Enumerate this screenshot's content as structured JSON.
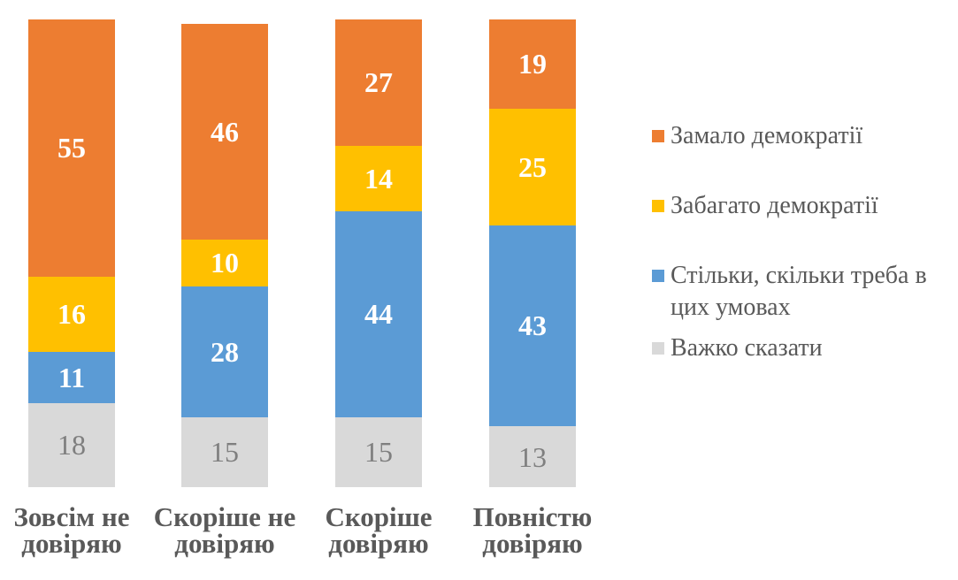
{
  "chart_data": {
    "type": "bar",
    "stacked": true,
    "orientation": "vertical",
    "title": "",
    "xlabel": "",
    "ylabel": "",
    "ylim": [
      0,
      100
    ],
    "grid": false,
    "axes_visible": false,
    "categories": [
      "Зовсім не\nдовіряю",
      "Скоріше не\nдовіряю",
      "Скоріше\nдовіряю",
      "Повністю\nдовіряю"
    ],
    "series": [
      {
        "name": "Замало демократії",
        "color": "#ED7D31",
        "values": [
          55,
          46,
          27,
          19
        ],
        "label_color": "#FFFFFF",
        "label_weight": "bold"
      },
      {
        "name": "Забагато демократії",
        "color": "#FFC000",
        "values": [
          16,
          10,
          14,
          25
        ],
        "label_color": "#FFFFFF",
        "label_weight": "bold"
      },
      {
        "name": "Стільки, скільки треба в цих умовах",
        "color": "#5B9BD5",
        "values": [
          11,
          28,
          44,
          43
        ],
        "label_color": "#FFFFFF",
        "label_weight": "bold"
      },
      {
        "name": "Важко сказати",
        "color": "#D9D9D9",
        "values": [
          18,
          15,
          15,
          13
        ],
        "label_color": "#7F7F7F",
        "label_weight": "normal"
      }
    ],
    "stack_order_top_to_bottom": [
      "Замало демократії",
      "Забагато демократії",
      "Стільки, скільки треба в цих умовах",
      "Важко сказати"
    ],
    "legend": {
      "position": "right",
      "items": [
        {
          "label": "Замало демократії",
          "color": "#ED7D31"
        },
        {
          "label": "Забагато демократії",
          "color": "#FFC000"
        },
        {
          "label": "Стільки, скільки треба в\nцих умовах",
          "color": "#5B9BD5"
        },
        {
          "label": "Важко сказати",
          "color": "#D9D9D9"
        }
      ]
    },
    "category_text_color": "#595959",
    "legend_text_color": "#595959",
    "background_color": "#FFFFFF"
  }
}
